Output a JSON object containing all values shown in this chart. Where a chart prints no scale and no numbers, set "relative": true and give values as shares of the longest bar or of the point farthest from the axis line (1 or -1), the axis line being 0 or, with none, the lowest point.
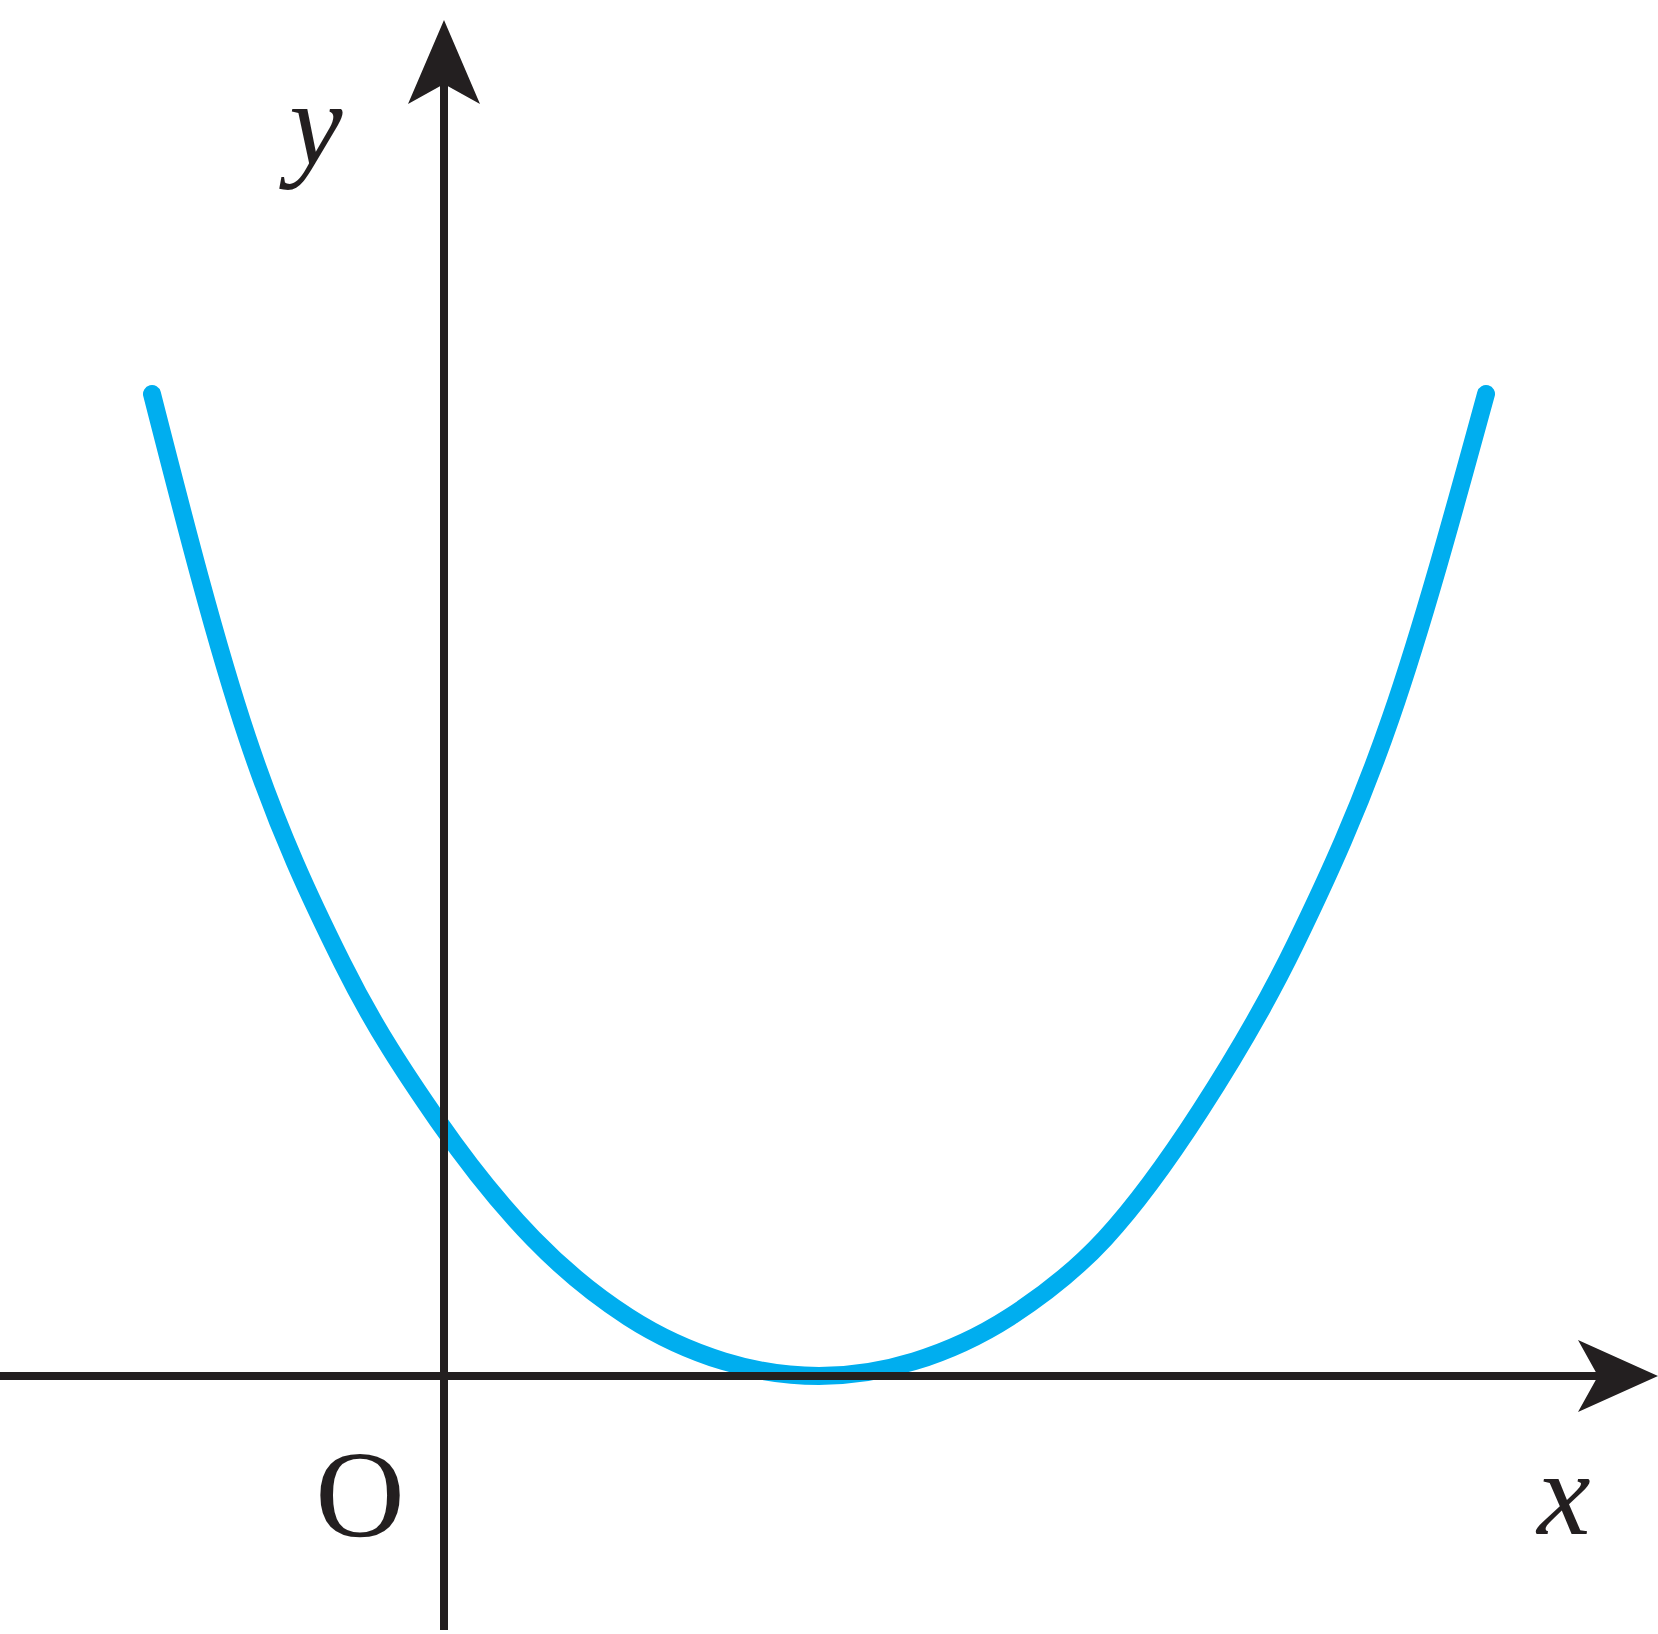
{
  "chart_data": {
    "type": "line",
    "relative": true,
    "xlabel": "x",
    "ylabel": "y",
    "annotations": [
      "O"
    ],
    "categories": [
      null,
      null,
      null,
      null,
      null,
      null,
      null,
      null,
      null,
      null,
      null,
      null,
      null,
      null,
      null
    ],
    "series": [
      {
        "color": "#00aeef",
        "values": [
          1,
          0.65,
          0.42,
          0.26,
          0.14,
          0.06,
          0.015,
          0,
          0.015,
          0.06,
          0.14,
          0.27,
          0.44,
          0.67,
          1
        ]
      }
    ]
  }
}
